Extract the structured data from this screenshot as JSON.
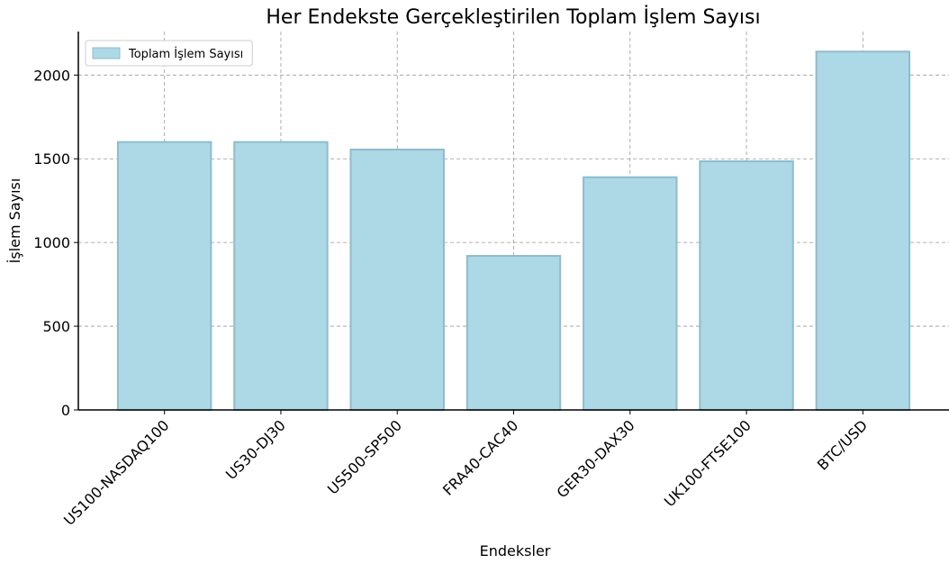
{
  "chart_data": {
    "type": "bar",
    "title": "Her Endekste Gerçekleştirilen Toplam İşlem Sayısı",
    "x_label": "Endeksler",
    "y_label": "İşlem Sayısı",
    "categories": [
      "US100-NASDAQ100",
      "US30-DJ30",
      "US500-SP500",
      "FRA40-CAC40",
      "GER30-DAX30",
      "UK100-FTSE100",
      "BTC/USD"
    ],
    "series": [
      {
        "name": "Toplam İşlem Sayısı",
        "color": "#add8e6",
        "values": [
          1600,
          1600,
          1555,
          920,
          1390,
          1485,
          2140
        ]
      }
    ],
    "ylim": [
      0,
      2260
    ],
    "yticks": [
      0,
      500,
      1000,
      1500,
      2000
    ],
    "grid": true,
    "legend": "upper left"
  }
}
